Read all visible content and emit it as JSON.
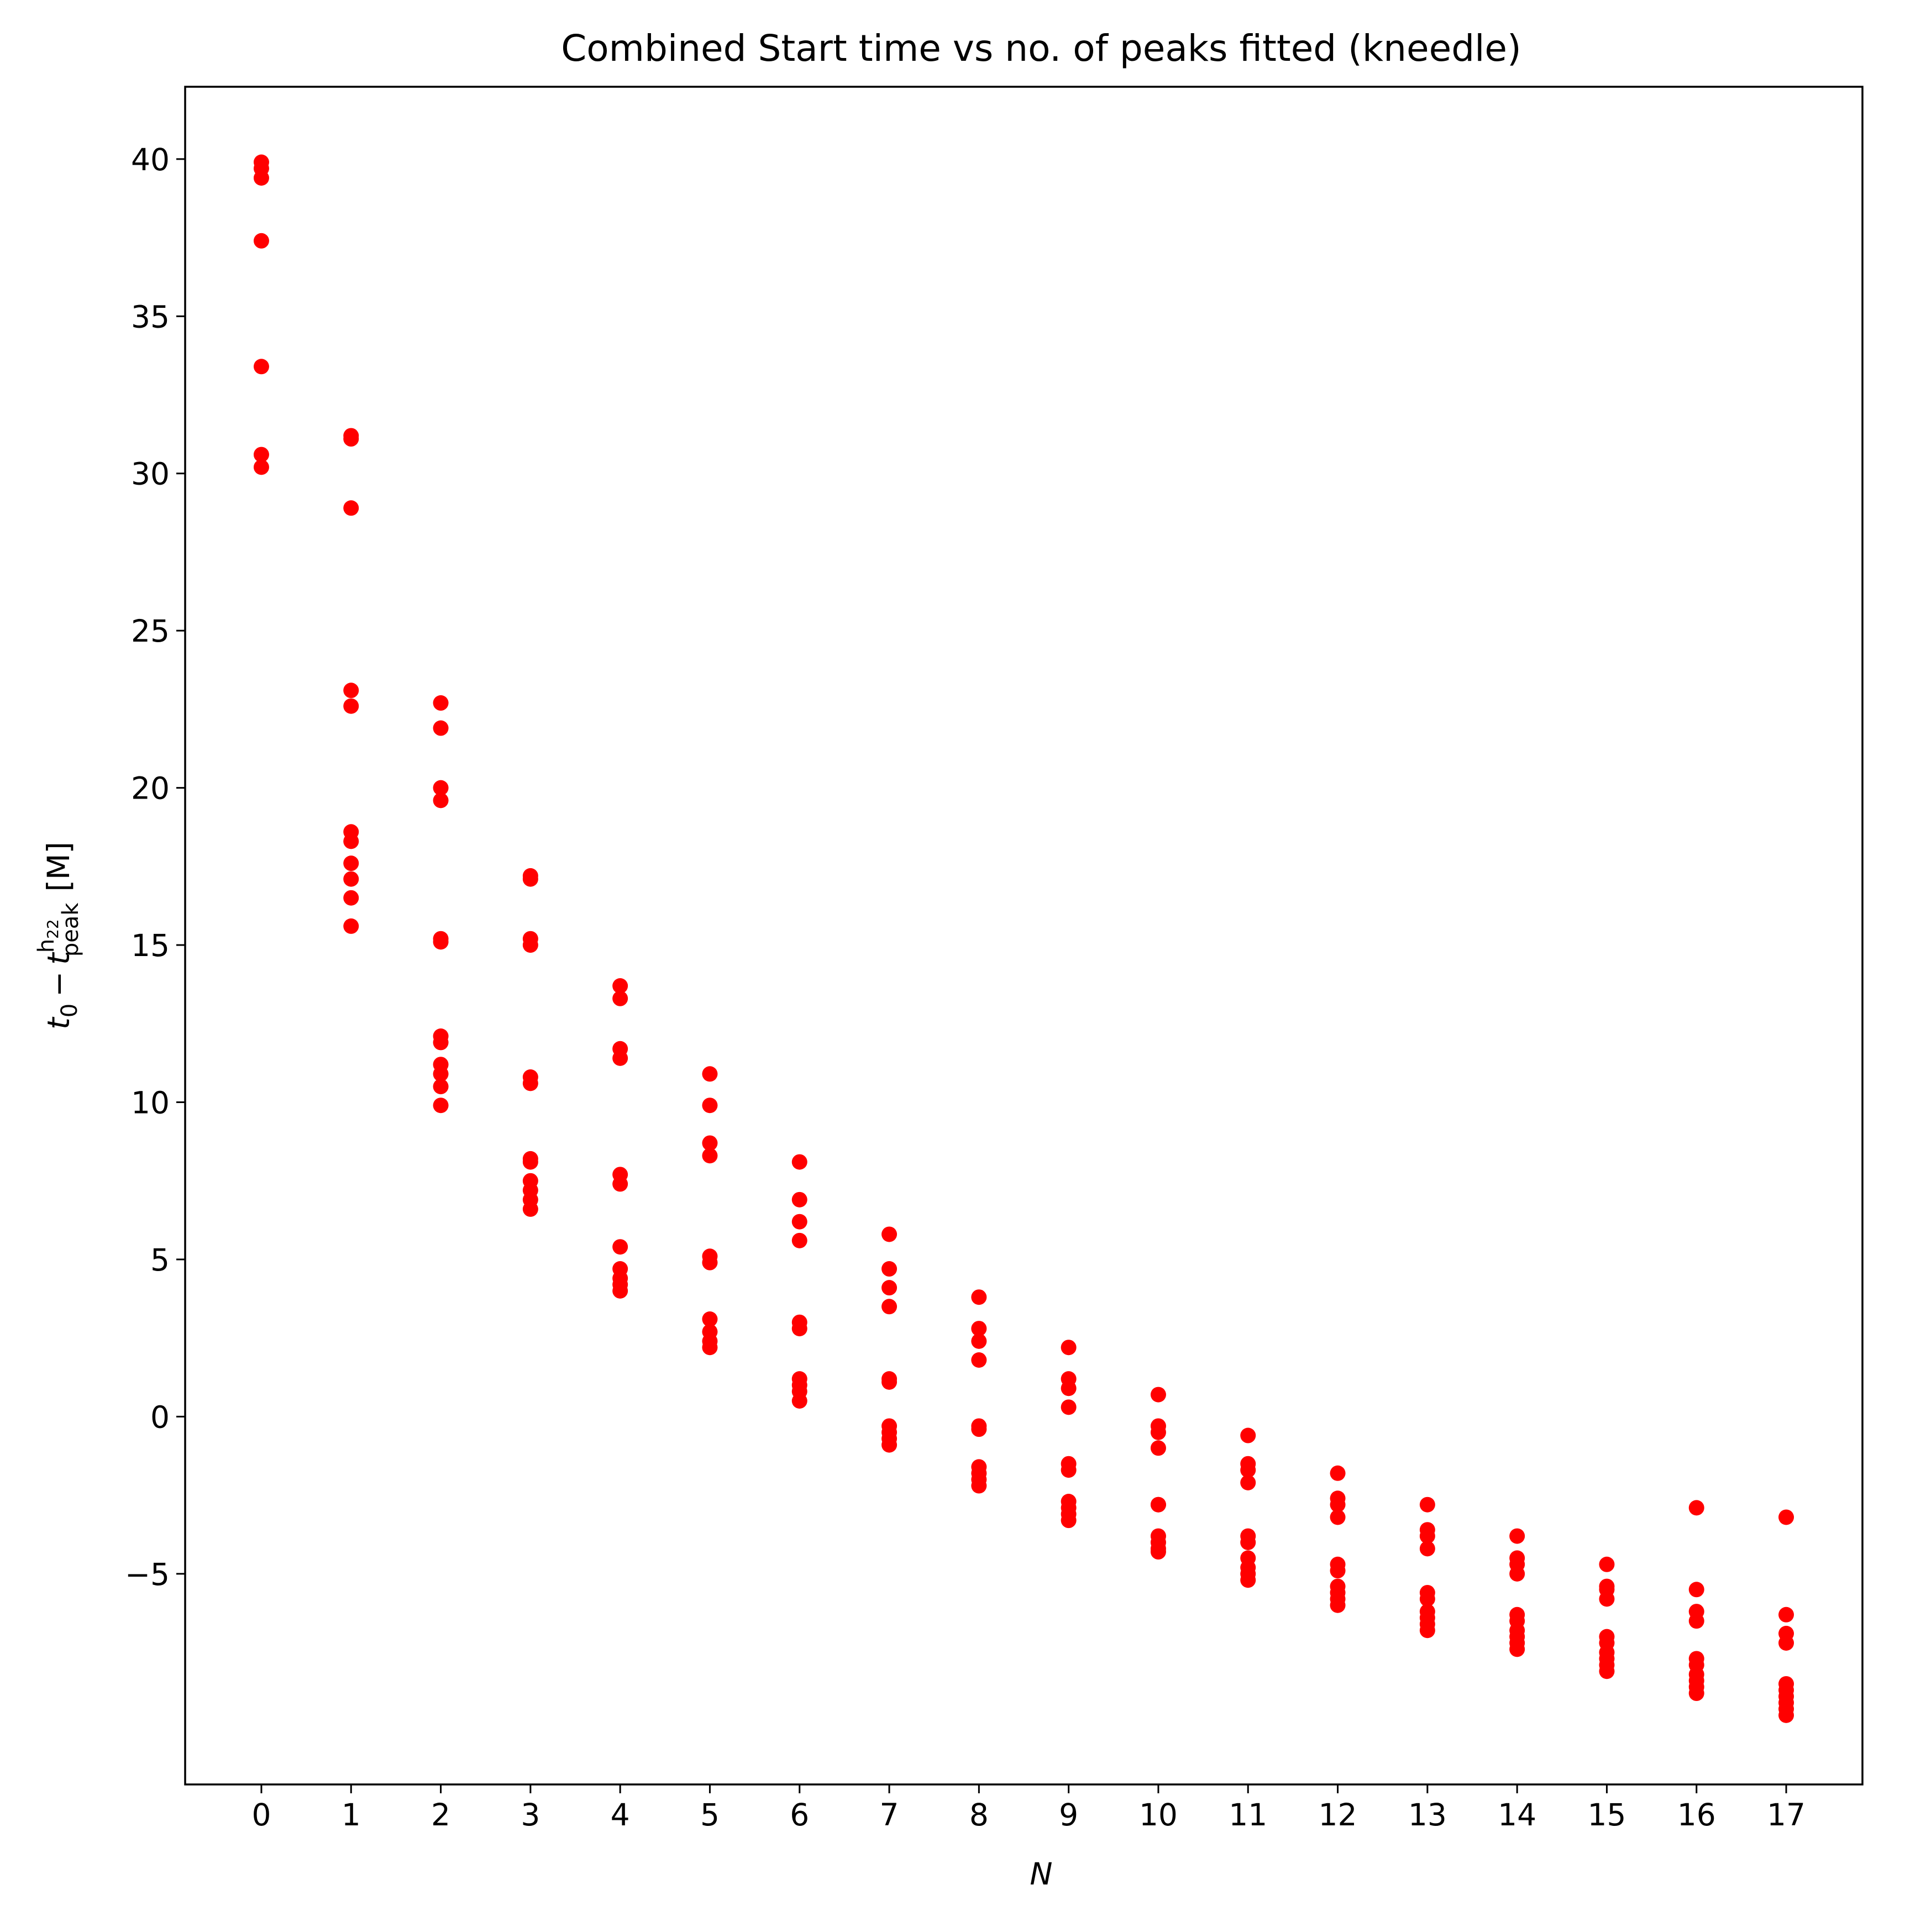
{
  "chart_data": {
    "type": "scatter",
    "title": "Combined Start time vs no. of peaks fitted (kneedle)",
    "xlabel": "N",
    "ylabel": {
      "t": "t",
      "zero": "0",
      "minus": "−",
      "peak": "peak",
      "h": "h",
      "h_sub": "22",
      "unit": "[M]"
    },
    "xlim": [
      -0.85,
      17.85
    ],
    "ylim": [
      -11.7,
      42.3
    ],
    "x_ticks": [
      0,
      1,
      2,
      3,
      4,
      5,
      6,
      7,
      8,
      9,
      10,
      11,
      12,
      13,
      14,
      15,
      16,
      17
    ],
    "y_ticks": [
      -5,
      0,
      5,
      10,
      15,
      20,
      25,
      30,
      35,
      40
    ],
    "y_tick_labels": [
      "−5",
      "0",
      "5",
      "10",
      "15",
      "20",
      "25",
      "30",
      "35",
      "40"
    ],
    "marker_color": "#ff0000",
    "grid": false,
    "legend": false,
    "series": [
      {
        "points": [
          [
            0,
            39.9
          ],
          [
            0,
            39.7
          ],
          [
            0,
            39.4
          ],
          [
            0,
            37.4
          ],
          [
            0,
            33.4
          ],
          [
            0,
            30.6
          ],
          [
            0,
            30.2
          ],
          [
            1,
            31.2
          ],
          [
            1,
            31.1
          ],
          [
            1,
            28.9
          ],
          [
            1,
            23.1
          ],
          [
            1,
            22.6
          ],
          [
            1,
            18.6
          ],
          [
            1,
            18.3
          ],
          [
            1,
            17.6
          ],
          [
            1,
            17.1
          ],
          [
            1,
            16.5
          ],
          [
            1,
            15.6
          ],
          [
            2,
            22.7
          ],
          [
            2,
            21.9
          ],
          [
            2,
            20.0
          ],
          [
            2,
            19.6
          ],
          [
            2,
            15.2
          ],
          [
            2,
            15.1
          ],
          [
            2,
            12.1
          ],
          [
            2,
            11.9
          ],
          [
            2,
            11.2
          ],
          [
            2,
            10.9
          ],
          [
            2,
            10.5
          ],
          [
            2,
            9.9
          ],
          [
            3,
            17.2
          ],
          [
            3,
            17.1
          ],
          [
            3,
            15.2
          ],
          [
            3,
            15.0
          ],
          [
            3,
            10.8
          ],
          [
            3,
            10.6
          ],
          [
            3,
            8.2
          ],
          [
            3,
            8.1
          ],
          [
            3,
            7.5
          ],
          [
            3,
            7.2
          ],
          [
            3,
            6.9
          ],
          [
            3,
            6.6
          ],
          [
            4,
            13.7
          ],
          [
            4,
            13.3
          ],
          [
            4,
            11.7
          ],
          [
            4,
            11.4
          ],
          [
            4,
            7.7
          ],
          [
            4,
            7.4
          ],
          [
            4,
            5.4
          ],
          [
            4,
            4.7
          ],
          [
            4,
            4.4
          ],
          [
            4,
            4.2
          ],
          [
            4,
            4.0
          ],
          [
            5,
            10.9
          ],
          [
            5,
            9.9
          ],
          [
            5,
            8.7
          ],
          [
            5,
            8.3
          ],
          [
            5,
            5.1
          ],
          [
            5,
            4.9
          ],
          [
            5,
            3.1
          ],
          [
            5,
            2.7
          ],
          [
            5,
            2.4
          ],
          [
            5,
            2.2
          ],
          [
            6,
            8.1
          ],
          [
            6,
            6.9
          ],
          [
            6,
            6.2
          ],
          [
            6,
            5.6
          ],
          [
            6,
            3.0
          ],
          [
            6,
            2.8
          ],
          [
            6,
            1.2
          ],
          [
            6,
            1.0
          ],
          [
            6,
            0.8
          ],
          [
            6,
            0.5
          ],
          [
            7,
            5.8
          ],
          [
            7,
            4.7
          ],
          [
            7,
            4.1
          ],
          [
            7,
            3.5
          ],
          [
            7,
            1.2
          ],
          [
            7,
            1.1
          ],
          [
            7,
            -0.3
          ],
          [
            7,
            -0.5
          ],
          [
            7,
            -0.7
          ],
          [
            7,
            -0.9
          ],
          [
            8,
            3.8
          ],
          [
            8,
            2.8
          ],
          [
            8,
            2.4
          ],
          [
            8,
            1.8
          ],
          [
            8,
            -0.3
          ],
          [
            8,
            -0.4
          ],
          [
            8,
            -1.6
          ],
          [
            8,
            -1.8
          ],
          [
            8,
            -2.0
          ],
          [
            8,
            -2.2
          ],
          [
            9,
            2.2
          ],
          [
            9,
            1.2
          ],
          [
            9,
            0.9
          ],
          [
            9,
            0.3
          ],
          [
            9,
            -1.5
          ],
          [
            9,
            -1.7
          ],
          [
            9,
            -2.7
          ],
          [
            9,
            -2.9
          ],
          [
            9,
            -3.1
          ],
          [
            9,
            -3.3
          ],
          [
            10,
            0.7
          ],
          [
            10,
            -0.3
          ],
          [
            10,
            -0.5
          ],
          [
            10,
            -1.0
          ],
          [
            10,
            -2.8
          ],
          [
            10,
            -2.8
          ],
          [
            10,
            -3.8
          ],
          [
            10,
            -4.0
          ],
          [
            10,
            -4.2
          ],
          [
            10,
            -4.3
          ],
          [
            11,
            -0.6
          ],
          [
            11,
            -1.5
          ],
          [
            11,
            -1.7
          ],
          [
            11,
            -2.1
          ],
          [
            11,
            -3.8
          ],
          [
            11,
            -4.0
          ],
          [
            11,
            -4.5
          ],
          [
            11,
            -4.8
          ],
          [
            11,
            -5.0
          ],
          [
            11,
            -5.2
          ],
          [
            12,
            -1.8
          ],
          [
            12,
            -2.6
          ],
          [
            12,
            -2.8
          ],
          [
            12,
            -3.2
          ],
          [
            12,
            -4.7
          ],
          [
            12,
            -4.9
          ],
          [
            12,
            -5.4
          ],
          [
            12,
            -5.6
          ],
          [
            12,
            -5.8
          ],
          [
            12,
            -6.0
          ],
          [
            13,
            -2.8
          ],
          [
            13,
            -3.6
          ],
          [
            13,
            -3.8
          ],
          [
            13,
            -4.2
          ],
          [
            13,
            -5.6
          ],
          [
            13,
            -5.8
          ],
          [
            13,
            -6.2
          ],
          [
            13,
            -6.4
          ],
          [
            13,
            -6.6
          ],
          [
            13,
            -6.8
          ],
          [
            14,
            -3.8
          ],
          [
            14,
            -4.5
          ],
          [
            14,
            -4.7
          ],
          [
            14,
            -5.0
          ],
          [
            14,
            -6.3
          ],
          [
            14,
            -6.5
          ],
          [
            14,
            -6.8
          ],
          [
            14,
            -7.0
          ],
          [
            14,
            -7.2
          ],
          [
            14,
            -7.4
          ],
          [
            15,
            -4.7
          ],
          [
            15,
            -5.4
          ],
          [
            15,
            -5.5
          ],
          [
            15,
            -5.8
          ],
          [
            15,
            -7.0
          ],
          [
            15,
            -7.2
          ],
          [
            15,
            -7.5
          ],
          [
            15,
            -7.7
          ],
          [
            15,
            -7.9
          ],
          [
            15,
            -8.1
          ],
          [
            16,
            -2.9
          ],
          [
            16,
            -5.5
          ],
          [
            16,
            -6.2
          ],
          [
            16,
            -6.5
          ],
          [
            16,
            -7.7
          ],
          [
            16,
            -7.9
          ],
          [
            16,
            -8.2
          ],
          [
            16,
            -8.4
          ],
          [
            16,
            -8.6
          ],
          [
            16,
            -8.8
          ],
          [
            17,
            -3.2
          ],
          [
            17,
            -6.3
          ],
          [
            17,
            -6.9
          ],
          [
            17,
            -7.2
          ],
          [
            17,
            -8.5
          ],
          [
            17,
            -8.7
          ],
          [
            17,
            -8.9
          ],
          [
            17,
            -9.1
          ],
          [
            17,
            -9.3
          ],
          [
            17,
            -9.5
          ]
        ]
      }
    ]
  }
}
